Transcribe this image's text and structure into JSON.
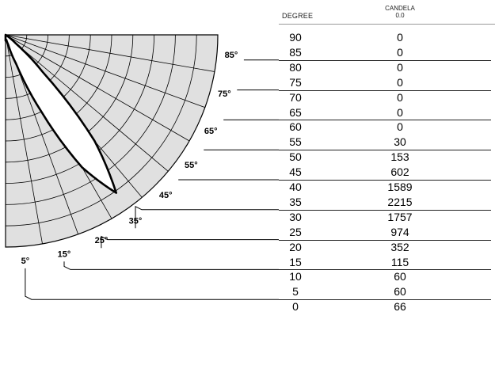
{
  "table": {
    "degree_header": "DEGREE",
    "candela_header": "CANDELA",
    "candela_sub": "0.0"
  },
  "chart_data": {
    "type": "polar",
    "title": "",
    "angle_labels": [
      "5°",
      "15°",
      "25°",
      "35°",
      "45°",
      "55°",
      "65°",
      "75°",
      "85°"
    ],
    "series": [
      {
        "degrees": [
          90,
          85,
          80,
          75,
          70,
          65,
          60,
          55,
          50,
          45,
          40,
          35,
          30,
          25,
          20,
          15,
          10,
          5,
          0
        ],
        "candela": [
          0,
          0,
          0,
          0,
          0,
          0,
          0,
          30,
          153,
          602,
          1589,
          2215,
          1757,
          974,
          352,
          115,
          60,
          60,
          66
        ]
      }
    ],
    "grid": true
  }
}
